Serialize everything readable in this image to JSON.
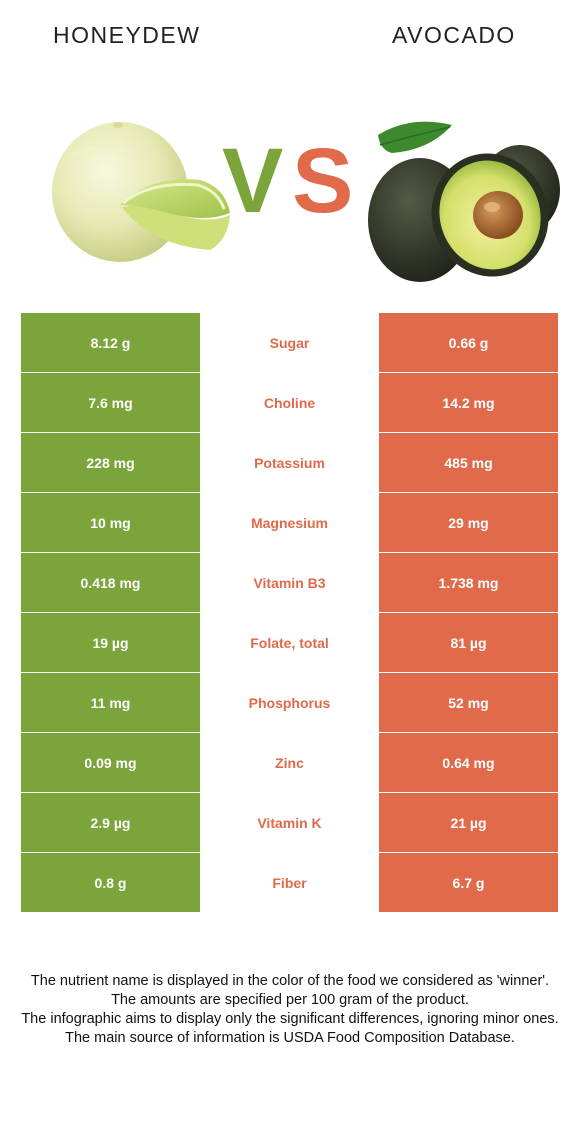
{
  "header": {
    "left_food": "HONEYDEW",
    "right_food": "AVOCADO",
    "vs_v": "V",
    "vs_s": "S"
  },
  "colors": {
    "left_accent": "#7ba43a",
    "right_accent": "#e06a4a"
  },
  "nutrients": [
    {
      "left": "8.12 g",
      "name": "Sugar",
      "right": "0.66 g"
    },
    {
      "left": "7.6 mg",
      "name": "Choline",
      "right": "14.2 mg"
    },
    {
      "left": "228 mg",
      "name": "Potassium",
      "right": "485 mg"
    },
    {
      "left": "10 mg",
      "name": "Magnesium",
      "right": "29 mg"
    },
    {
      "left": "0.418 mg",
      "name": "Vitamin B3",
      "right": "1.738 mg"
    },
    {
      "left": "19 µg",
      "name": "Folate, total",
      "right": "81 µg"
    },
    {
      "left": "11 mg",
      "name": "Phosphorus",
      "right": "52 mg"
    },
    {
      "left": "0.09 mg",
      "name": "Zinc",
      "right": "0.64 mg"
    },
    {
      "left": "2.9 µg",
      "name": "Vitamin K",
      "right": "21 µg"
    },
    {
      "left": "0.8 g",
      "name": "Fiber",
      "right": "6.7 g"
    }
  ],
  "footer": {
    "line1": "The nutrient name is displayed in the color of the food we considered as 'winner'.",
    "line2": "The amounts are specified per 100 gram of the product.",
    "line3": "The infographic aims to display only the significant differences, ignoring minor ones.",
    "line4": "The main source of information is USDA Food Composition Database."
  }
}
